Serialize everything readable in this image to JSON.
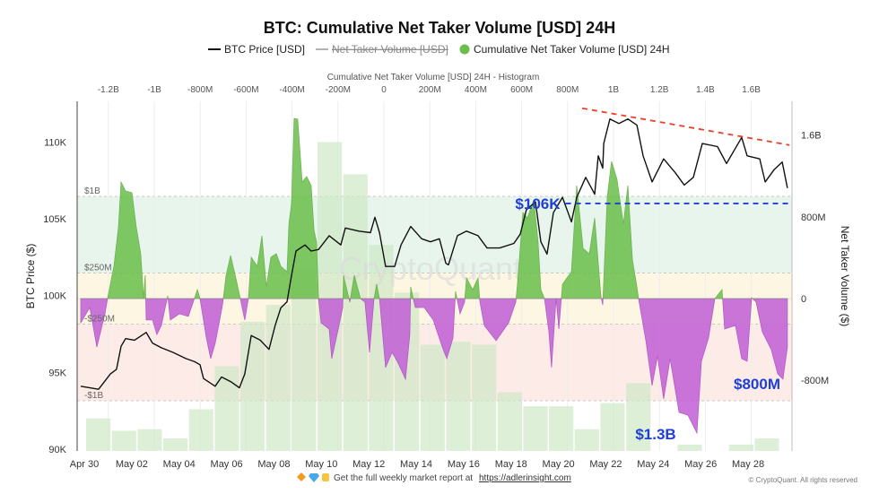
{
  "title": "BTC: Cumulative Net Taker Volume [USD] 24H",
  "legend": {
    "price": "BTC Price [USD]",
    "net": "Net Taker Volume [USD]",
    "cumulative": "Cumulative Net Taker Volume [USD] 24H"
  },
  "colors": {
    "price": "#111111",
    "positive": "#6abf4b",
    "negative": "#c15fd6",
    "histogram": "#cfe8c6",
    "trendline": "#e8402a",
    "annotation": "#1f3fd6"
  },
  "watermark": "CryptoQuant",
  "footer": {
    "icons": [
      "orange-diamond-icon",
      "blue-gem-icon",
      "raised-hands-icon"
    ],
    "text": "Get the full weekly market report at",
    "link": "https://adlerinsight.com",
    "copyright": "© CryptoQuant. All rights reserved"
  },
  "chart_data": {
    "type": "line",
    "title": "BTC: Cumulative Net Taker Volume [USD] 24H",
    "x_axis": {
      "ticks": [
        "Apr 30",
        "May 02",
        "May 04",
        "May 06",
        "May 08",
        "May 10",
        "May 12",
        "May 14",
        "May 16",
        "May 18",
        "May 20",
        "May 22",
        "May 24",
        "May 26",
        "May 28"
      ],
      "unit": "days since Apr 30"
    },
    "y_left": {
      "label": "BTC Price ($)",
      "ticks": [
        "90K",
        "95K",
        "100K",
        "105K",
        "110K"
      ],
      "tick_values": [
        90,
        95,
        100,
        105,
        110
      ],
      "range": [
        90,
        112.5
      ]
    },
    "y_right": {
      "label": "Net Taker Volume ($)",
      "ticks": [
        "1.6B",
        "800M",
        "0",
        "-800M"
      ],
      "tick_values": [
        1600,
        800,
        0,
        -800
      ]
    },
    "top_axis": {
      "label": "Cumulative Net Taker Volume [USD] 24H - Histogram",
      "ticks": [
        "-1.2B",
        "-1B",
        "-800M",
        "-600M",
        "-400M",
        "-200M",
        "0",
        "200M",
        "400M",
        "600M",
        "800M",
        "1B",
        "1.2B",
        "1.4B",
        "1.6B"
      ],
      "tick_values": [
        -1.2,
        -1,
        -0.8,
        -0.6,
        -0.4,
        -0.2,
        0,
        0.2,
        0.4,
        0.6,
        0.8,
        1,
        1.2,
        1.4,
        1.6
      ]
    },
    "bands": [
      {
        "label": "$1B",
        "value": 1000
      },
      {
        "label": "$250M",
        "value": 250
      },
      {
        "label": "-$250M",
        "value": -250
      },
      {
        "label": "-$1B",
        "value": -1000
      }
    ],
    "histogram": {
      "bin_start_B": -1.297,
      "bin_width_B": 0.112,
      "levels_price_K": [
        92.0,
        91.2,
        91.3,
        90.7,
        92.6,
        95.4,
        98.3,
        99.4,
        101.7,
        110.0,
        107.9,
        103.3,
        100.2,
        96.8,
        97.0,
        96.8,
        93.7,
        92.8,
        92.8,
        91.3,
        93.0,
        94.3,
        90.0,
        90.3,
        90.0,
        90.3,
        90.7
      ]
    },
    "series": [
      {
        "name": "BTC Price [USD]",
        "axis": "left",
        "points": [
          [
            -0.15,
            94.1
          ],
          [
            0.6,
            93.9
          ],
          [
            1.1,
            94.9
          ],
          [
            1.36,
            95.2
          ],
          [
            1.55,
            96.7
          ],
          [
            1.74,
            97.2
          ],
          [
            2.12,
            97.1
          ],
          [
            2.61,
            97.6
          ],
          [
            2.88,
            96.9
          ],
          [
            3.25,
            96.6
          ],
          [
            3.75,
            96.3
          ],
          [
            4.28,
            95.9
          ],
          [
            4.65,
            95.7
          ],
          [
            4.88,
            95.5
          ],
          [
            5.03,
            94.6
          ],
          [
            5.52,
            94.1
          ],
          [
            5.79,
            94.7
          ],
          [
            6.17,
            94.4
          ],
          [
            6.54,
            94.0
          ],
          [
            6.77,
            94.9
          ],
          [
            7.04,
            97.4
          ],
          [
            7.42,
            97.1
          ],
          [
            7.79,
            96.5
          ],
          [
            8.06,
            98.1
          ],
          [
            8.29,
            99.2
          ],
          [
            8.55,
            99.6
          ],
          [
            8.74,
            101.3
          ],
          [
            8.93,
            102.9
          ],
          [
            9.31,
            103.3
          ],
          [
            9.57,
            102.9
          ],
          [
            9.88,
            103.0
          ],
          [
            10.33,
            103.9
          ],
          [
            10.82,
            103.3
          ],
          [
            11.01,
            104.4
          ],
          [
            11.58,
            104.2
          ],
          [
            12.07,
            104.1
          ],
          [
            12.26,
            105.1
          ],
          [
            12.45,
            104.1
          ],
          [
            12.71,
            101.9
          ],
          [
            13.09,
            101.9
          ],
          [
            13.36,
            103.3
          ],
          [
            13.77,
            104.5
          ],
          [
            14.23,
            103.7
          ],
          [
            14.6,
            103.5
          ],
          [
            14.98,
            103.7
          ],
          [
            15.25,
            102.1
          ],
          [
            15.36,
            102.0
          ],
          [
            15.74,
            103.9
          ],
          [
            16.12,
            104.2
          ],
          [
            16.61,
            103.9
          ],
          [
            16.99,
            103.1
          ],
          [
            17.52,
            103.1
          ],
          [
            18.12,
            103.4
          ],
          [
            18.39,
            104.0
          ],
          [
            18.65,
            105.6
          ],
          [
            19.03,
            106.1
          ],
          [
            19.26,
            103.5
          ],
          [
            19.52,
            102.7
          ],
          [
            19.79,
            105.4
          ],
          [
            20.17,
            106.4
          ],
          [
            20.55,
            104.8
          ],
          [
            20.77,
            106.4
          ],
          [
            21.15,
            107.7
          ],
          [
            21.53,
            106.6
          ],
          [
            21.68,
            109.1
          ],
          [
            21.87,
            108.3
          ],
          [
            21.91,
            109.9
          ],
          [
            22.17,
            111.5
          ],
          [
            22.55,
            111.2
          ],
          [
            22.93,
            111.5
          ],
          [
            23.31,
            111.1
          ],
          [
            23.57,
            109.1
          ],
          [
            23.95,
            107.4
          ],
          [
            24.44,
            108.9
          ],
          [
            24.93,
            108.0
          ],
          [
            25.31,
            107.2
          ],
          [
            25.69,
            107.7
          ],
          [
            26.07,
            109.9
          ],
          [
            26.71,
            109.7
          ],
          [
            27.09,
            108.6
          ],
          [
            27.73,
            110.3
          ],
          [
            27.96,
            109.1
          ],
          [
            28.49,
            108.9
          ],
          [
            28.72,
            107.4
          ],
          [
            29.1,
            108.2
          ],
          [
            29.44,
            108.7
          ],
          [
            29.66,
            107.0
          ]
        ]
      },
      {
        "name": "Cumulative Net Taker Volume [USD] 24H",
        "axis": "right",
        "unit": "M USD",
        "points": [
          [
            -0.15,
            -237
          ],
          [
            0.23,
            -88
          ],
          [
            0.53,
            -474
          ],
          [
            0.87,
            -149
          ],
          [
            0.98,
            0
          ],
          [
            1.25,
            316
          ],
          [
            1.44,
            702
          ],
          [
            1.55,
            1140
          ],
          [
            1.74,
            1053
          ],
          [
            2.01,
            1035
          ],
          [
            2.19,
            702
          ],
          [
            2.38,
            439
          ],
          [
            2.5,
            0
          ],
          [
            2.57,
            228
          ],
          [
            2.61,
            -210
          ],
          [
            2.88,
            -210
          ],
          [
            3.06,
            -351
          ],
          [
            3.25,
            -263
          ],
          [
            3.52,
            26
          ],
          [
            3.63,
            -210
          ],
          [
            4.01,
            -149
          ],
          [
            4.39,
            -175
          ],
          [
            4.77,
            88
          ],
          [
            4.88,
            0
          ],
          [
            5.15,
            -386
          ],
          [
            5.33,
            -588
          ],
          [
            5.52,
            -439
          ],
          [
            5.83,
            -61
          ],
          [
            5.98,
            228
          ],
          [
            6.17,
            421
          ],
          [
            6.39,
            202
          ],
          [
            6.58,
            0
          ],
          [
            6.77,
            -210
          ],
          [
            6.92,
            0
          ],
          [
            7.04,
            404
          ],
          [
            7.3,
            316
          ],
          [
            7.49,
            614
          ],
          [
            7.68,
            114
          ],
          [
            7.87,
            404
          ],
          [
            8.1,
            439
          ],
          [
            8.29,
            316
          ],
          [
            8.55,
            263
          ],
          [
            8.63,
            728
          ],
          [
            8.74,
            930
          ],
          [
            8.85,
            1763
          ],
          [
            9.0,
            1754
          ],
          [
            9.19,
            1140
          ],
          [
            9.38,
            1193
          ],
          [
            9.57,
            1105
          ],
          [
            9.69,
            667
          ],
          [
            9.8,
            553
          ],
          [
            9.88,
            0
          ],
          [
            9.99,
            -237
          ],
          [
            10.33,
            -298
          ],
          [
            10.44,
            -588
          ],
          [
            10.71,
            -298
          ],
          [
            10.9,
            -88
          ],
          [
            10.93,
            228
          ],
          [
            11.2,
            -35
          ],
          [
            11.39,
            228
          ],
          [
            11.65,
            0
          ],
          [
            11.84,
            -35
          ],
          [
            12.03,
            -526
          ],
          [
            12.22,
            0
          ],
          [
            12.33,
            140
          ],
          [
            12.45,
            0
          ],
          [
            12.71,
            -675
          ],
          [
            12.98,
            -526
          ],
          [
            13.2,
            -614
          ],
          [
            13.55,
            -789
          ],
          [
            13.73,
            -351
          ],
          [
            13.77,
            114
          ],
          [
            13.96,
            -88
          ],
          [
            14.34,
            -88
          ],
          [
            14.72,
            -210
          ],
          [
            15.1,
            -474
          ],
          [
            15.29,
            -588
          ],
          [
            15.55,
            -386
          ],
          [
            15.66,
            70
          ],
          [
            15.85,
            -149
          ],
          [
            16.04,
            -35
          ],
          [
            16.12,
            202
          ],
          [
            16.38,
            88
          ],
          [
            16.61,
            202
          ],
          [
            16.69,
            -35
          ],
          [
            16.87,
            -263
          ],
          [
            17.37,
            -412
          ],
          [
            17.9,
            -237
          ],
          [
            18.2,
            -35
          ],
          [
            18.27,
            140
          ],
          [
            18.5,
            842
          ],
          [
            18.69,
            789
          ],
          [
            18.96,
            965
          ],
          [
            19.14,
            553
          ],
          [
            19.26,
            88
          ],
          [
            19.41,
            0
          ],
          [
            19.6,
            -325
          ],
          [
            19.71,
            -675
          ],
          [
            19.9,
            0
          ],
          [
            20.02,
            -298
          ],
          [
            20.17,
            140
          ],
          [
            20.55,
            263
          ],
          [
            20.77,
            1105
          ],
          [
            21.04,
            491
          ],
          [
            21.3,
            439
          ],
          [
            21.53,
            789
          ],
          [
            21.79,
            26
          ],
          [
            21.87,
            -61
          ],
          [
            22.06,
            991
          ],
          [
            22.24,
            1342
          ],
          [
            22.47,
            1167
          ],
          [
            22.74,
            728
          ],
          [
            22.93,
            1105
          ],
          [
            23.12,
            377
          ],
          [
            23.31,
            114
          ],
          [
            23.38,
            0
          ],
          [
            23.69,
            -412
          ],
          [
            23.95,
            -851
          ],
          [
            24.18,
            -561
          ],
          [
            24.44,
            -982
          ],
          [
            24.71,
            -588
          ],
          [
            25.09,
            -1114
          ],
          [
            25.46,
            -1140
          ],
          [
            25.84,
            -1316
          ],
          [
            26.03,
            -614
          ],
          [
            26.33,
            -386
          ],
          [
            26.6,
            0
          ],
          [
            26.9,
            88
          ],
          [
            27.01,
            -298
          ],
          [
            27.47,
            -263
          ],
          [
            27.73,
            -588
          ],
          [
            27.96,
            -614
          ],
          [
            28.15,
            9
          ],
          [
            28.34,
            -35
          ],
          [
            28.6,
            -325
          ],
          [
            28.98,
            -500
          ],
          [
            29.25,
            -737
          ],
          [
            29.47,
            -789
          ],
          [
            29.66,
            -474
          ]
        ]
      }
    ],
    "annotations": {
      "support": {
        "label": "$106K",
        "price_K": 106,
        "from_day": 20.3,
        "to_day": 29.8
      },
      "trendline": {
        "from": [
          21.0,
          112.2
        ],
        "to": [
          29.75,
          109.8
        ]
      },
      "low_label": "$1.3B",
      "recent_label": "$800M"
    },
    "grid": true,
    "legend_position": "top"
  }
}
